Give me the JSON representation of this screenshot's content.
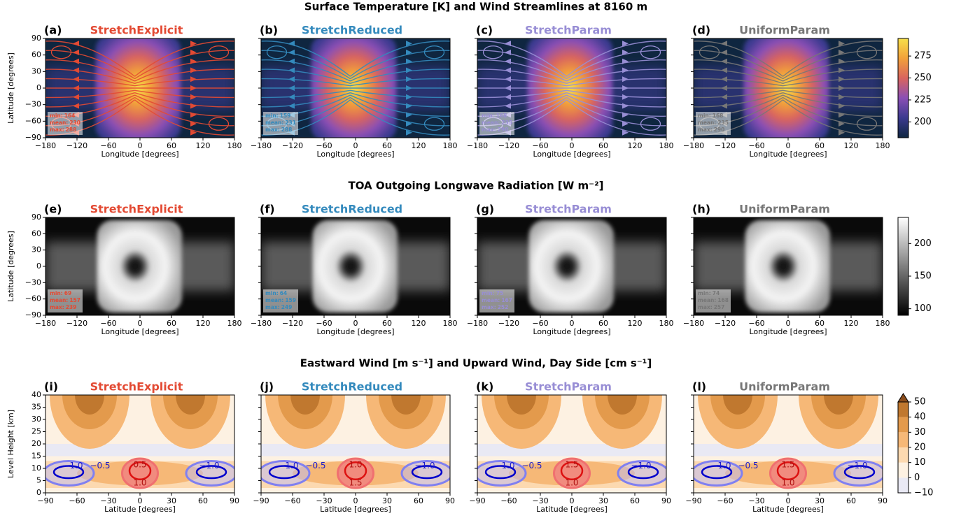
{
  "chart_data": [
    {
      "type": "heatmap",
      "cmap": "thermal",
      "streamlines": true,
      "title": "Surface Temperature [K] and Wind Streamlines at 8160 m",
      "xlabel": "Longitude [degrees]",
      "ylabel": "Latitude [degrees]",
      "xlim": [
        -180,
        180
      ],
      "xticks": [
        {
          "value": -180,
          "label": "−180"
        },
        {
          "value": -120,
          "label": "−120"
        },
        {
          "value": -60,
          "label": "−60"
        },
        0,
        60,
        120,
        180
      ],
      "ylim": [
        -90,
        90
      ],
      "yticks": [
        {
          "value": -90,
          "label": "−90"
        },
        {
          "value": -60,
          "label": "−60"
        },
        {
          "value": -30,
          "label": "−30"
        },
        0,
        30,
        60,
        90
      ],
      "colorbar": {
        "lim": [
          182,
          295
        ],
        "ticks": [
          200,
          225,
          250,
          275
        ],
        "colors": [
          "#0f2640",
          "#3b3a8f",
          "#8a4fb5",
          "#d9645e",
          "#f2a13a",
          "#f7e04b"
        ]
      },
      "panels": [
        {
          "label": "(a)",
          "name": "StretchExplicit",
          "color": "#e34a33",
          "stats": [
            {
              "label": "min:",
              "value": 164
            },
            {
              "label": "mean:",
              "value": 230
            },
            {
              "label": "max:",
              "value": 288
            }
          ]
        },
        {
          "label": "(b)",
          "name": "StretchReduced",
          "color": "#348abd",
          "stats": [
            {
              "label": "min:",
              "value": 159
            },
            {
              "label": "mean:",
              "value": 231
            },
            {
              "label": "max:",
              "value": 288
            }
          ]
        },
        {
          "label": "(c)",
          "name": "StretchParam",
          "color": "#988ed5",
          "stats": [
            {
              "label": "min:",
              "value": 168
            },
            {
              "label": "mean:",
              "value": 235
            },
            {
              "label": "max:",
              "value": 290
            }
          ]
        },
        {
          "label": "(d)",
          "name": "UniformParam",
          "color": "#777777",
          "stats": [
            {
              "label": "min:",
              "value": 168
            },
            {
              "label": "mean:",
              "value": 235
            },
            {
              "label": "max:",
              "value": 290
            }
          ]
        }
      ]
    },
    {
      "type": "heatmap",
      "cmap": "gray",
      "streamlines": false,
      "title": "TOA Outgoing Longwave Radiation [W m⁻²]",
      "xlabel": "Longitude [degrees]",
      "ylabel": "Latitude [degrees]",
      "xlim": [
        -180,
        180
      ],
      "xticks": [
        {
          "value": -180,
          "label": "−180"
        },
        {
          "value": -120,
          "label": "−120"
        },
        {
          "value": -60,
          "label": "−60"
        },
        0,
        60,
        120,
        180
      ],
      "ylim": [
        -90,
        90
      ],
      "yticks": [
        {
          "value": -90,
          "label": "−90"
        },
        {
          "value": -60,
          "label": "−60"
        },
        {
          "value": -30,
          "label": "−30"
        },
        0,
        30,
        60,
        90
      ],
      "colorbar": {
        "lim": [
          90,
          240
        ],
        "ticks": [
          100,
          150,
          200
        ],
        "colors": [
          "#000000",
          "#ffffff"
        ]
      },
      "panels": [
        {
          "label": "(e)",
          "name": "StretchExplicit",
          "color": "#e34a33",
          "stats": [
            {
              "label": "min:",
              "value": 69
            },
            {
              "label": "mean:",
              "value": 157
            },
            {
              "label": "max:",
              "value": 239
            }
          ]
        },
        {
          "label": "(f)",
          "name": "StretchReduced",
          "color": "#348abd",
          "stats": [
            {
              "label": "min:",
              "value": 64
            },
            {
              "label": "mean:",
              "value": 159
            },
            {
              "label": "max:",
              "value": 249
            }
          ]
        },
        {
          "label": "(g)",
          "name": "StretchParam",
          "color": "#988ed5",
          "stats": [
            {
              "label": "min:",
              "value": 75
            },
            {
              "label": "mean:",
              "value": 167
            },
            {
              "label": "max:",
              "value": 252
            }
          ]
        },
        {
          "label": "(h)",
          "name": "UniformParam",
          "color": "#777777",
          "stats": [
            {
              "label": "min:",
              "value": 74
            },
            {
              "label": "mean:",
              "value": 168
            },
            {
              "label": "max:",
              "value": 257
            }
          ]
        }
      ]
    },
    {
      "type": "contour",
      "title": "Eastward Wind [m s⁻¹] and Upward Wind, Day Side [cm s⁻¹]",
      "xlabel": "Latitude [degrees]",
      "ylabel": "Level Height [km]",
      "xlim": [
        -90,
        90
      ],
      "xticks": [
        {
          "value": -90,
          "label": "−90"
        },
        {
          "value": -60,
          "label": "−60"
        },
        {
          "value": -30,
          "label": "−30"
        },
        0,
        30,
        60,
        90
      ],
      "ylim": [
        0,
        40
      ],
      "yticks": [
        0,
        5,
        10,
        15,
        20,
        25,
        30,
        35,
        40
      ],
      "colorbar": {
        "lim": [
          -10,
          50
        ],
        "ticks": [
          {
            "value": -10,
            "label": "−10"
          },
          0,
          10,
          20,
          30,
          40,
          50
        ],
        "colors": [
          "#e9e9f4",
          "#fdf1e2",
          "#fcd9b0",
          "#f6b877",
          "#e39a4c",
          "#c0782f"
        ],
        "extend_color": "#8b4d1c"
      },
      "panels": [
        {
          "label": "(i)",
          "name": "StretchExplicit",
          "color": "#e34a33",
          "contour_labels": [
            {
              "value": -1,
              "label": "−1.0"
            },
            {
              "value": -0.5,
              "label": "−0.5"
            },
            {
              "value": 1,
              "label": "1.0"
            },
            {
              "value": 0.5,
              "label": "0.5"
            },
            {
              "value": -1,
              "label": "−1.0"
            }
          ]
        },
        {
          "label": "(j)",
          "name": "StretchReduced",
          "color": "#348abd",
          "contour_labels": [
            {
              "value": -1,
              "label": "−1.0"
            },
            {
              "value": -0.5,
              "label": "−0.5"
            },
            {
              "value": 1.5,
              "label": "1.5"
            },
            {
              "value": 1,
              "label": "1.0"
            },
            {
              "value": -1,
              "label": "−1.0"
            }
          ]
        },
        {
          "label": "(k)",
          "name": "StretchParam",
          "color": "#988ed5",
          "contour_labels": [
            {
              "value": -1,
              "label": "−1.0"
            },
            {
              "value": -0.5,
              "label": "−0.5"
            },
            {
              "value": 1,
              "label": "1.0"
            },
            {
              "value": 1.5,
              "label": "1.5"
            },
            {
              "value": -1,
              "label": "−1.0"
            }
          ]
        },
        {
          "label": "(l)",
          "name": "UniformParam",
          "color": "#777777",
          "contour_labels": [
            {
              "value": -1,
              "label": "−1.0"
            },
            {
              "value": -0.5,
              "label": "−0.5"
            },
            {
              "value": 1,
              "label": "1.0"
            },
            {
              "value": 1.5,
              "label": "1.5"
            },
            {
              "value": -1,
              "label": "−1.0"
            }
          ]
        }
      ]
    }
  ]
}
